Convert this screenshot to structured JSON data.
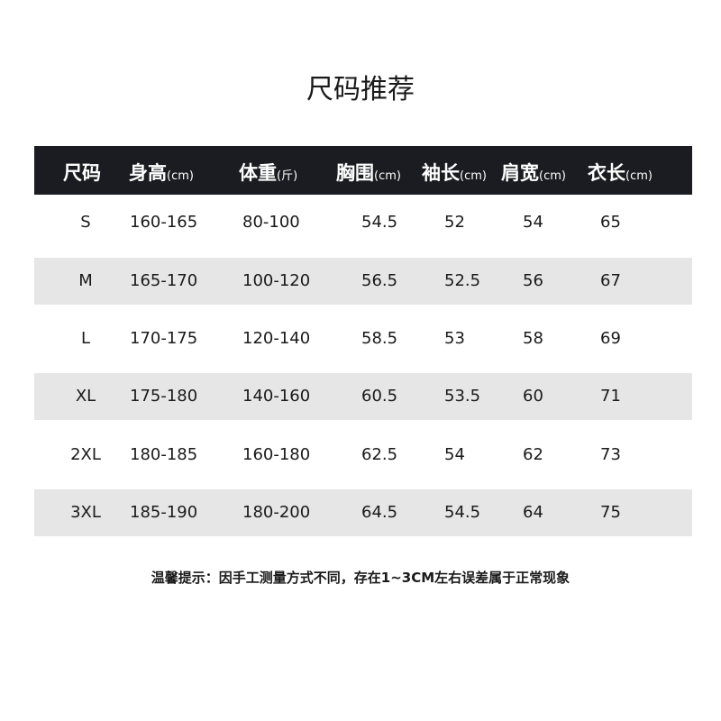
{
  "title": "尺码推荐",
  "headers": [
    {
      "label": "尺码",
      "unit": ""
    },
    {
      "label": "身高",
      "unit": "(cm)"
    },
    {
      "label": "体重",
      "unit": "(斤)"
    },
    {
      "label": "胸围",
      "unit": "(cm)"
    },
    {
      "label": "袖长",
      "unit": "(cm)"
    },
    {
      "label": "肩宽",
      "unit": "(cm)"
    },
    {
      "label": "衣长",
      "unit": "(cm)"
    }
  ],
  "rows": [
    [
      "S",
      "160-165",
      "80-100",
      "54.5",
      "52",
      "54",
      "65"
    ],
    [
      "M",
      "165-170",
      "100-120",
      "56.5",
      "52.5",
      "56",
      "67"
    ],
    [
      "L",
      "170-175",
      "120-140",
      "58.5",
      "53",
      "58",
      "69"
    ],
    [
      "XL",
      "175-180",
      "140-160",
      "60.5",
      "53.5",
      "60",
      "71"
    ],
    [
      "2XL",
      "180-185",
      "160-180",
      "62.5",
      "54",
      "62",
      "73"
    ],
    [
      "3XL",
      "185-190",
      "180-200",
      "64.5",
      "54.5",
      "64",
      "75"
    ]
  ],
  "note": "温馨提示：因手工测量方式不同，存在1~3CM左右误差属于正常现象",
  "colors": {
    "header_bg": "#1b1c21",
    "stripe": "#e6e6e6"
  }
}
